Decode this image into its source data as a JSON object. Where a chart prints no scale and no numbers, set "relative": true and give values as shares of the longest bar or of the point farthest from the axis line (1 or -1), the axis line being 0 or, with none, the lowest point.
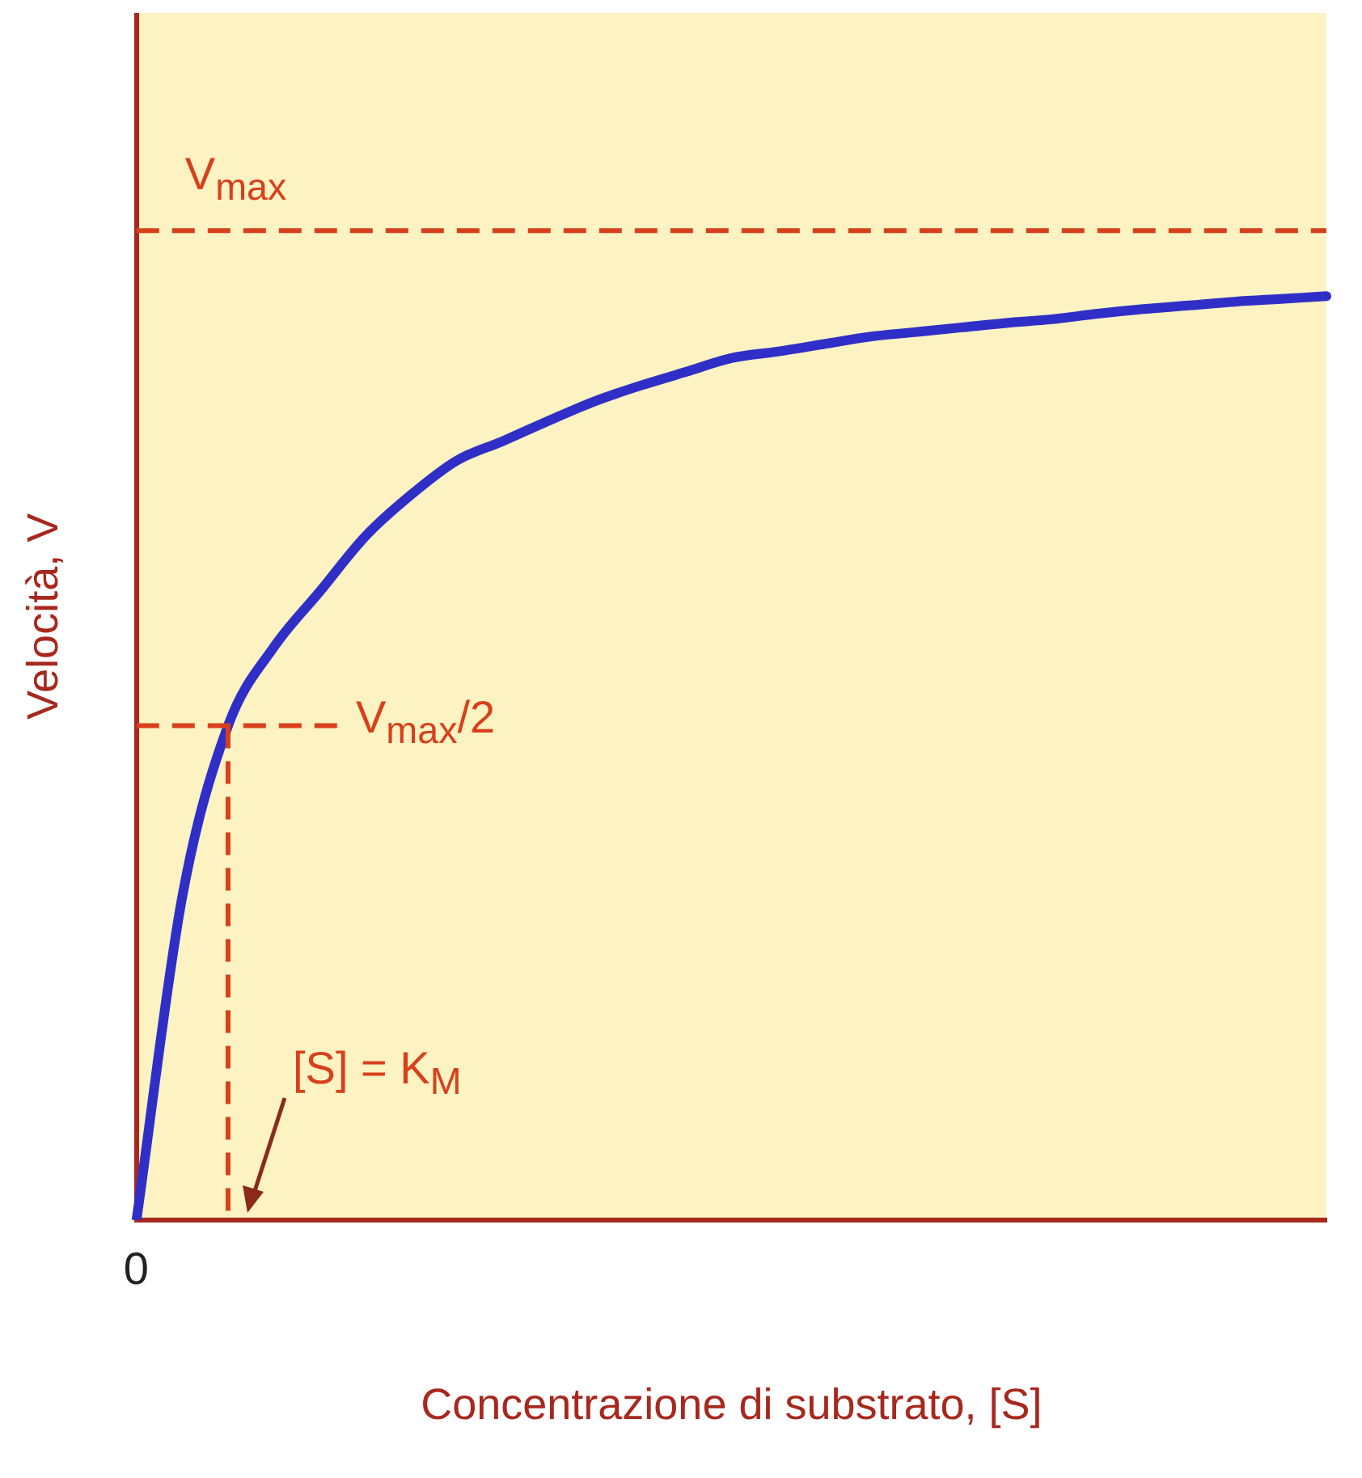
{
  "chart_data": {
    "type": "line",
    "relative": true,
    "xlabel": "Concentrazione di substrato, [S]",
    "ylabel": "Velocità, V",
    "categories": [
      null,
      null,
      null,
      null,
      null,
      null,
      null,
      null,
      null,
      null,
      null,
      null,
      null,
      null,
      null,
      null,
      null,
      null,
      null,
      null,
      null,
      null,
      null,
      null,
      null,
      null,
      null
    ],
    "series": [
      {
        "color": "#2f2fc8",
        "values": [
          0,
          0.35,
          0.535,
          0.62,
          0.68,
          0.74,
          0.785,
          0.822,
          0.843,
          0.865,
          0.886,
          0.903,
          0.918,
          0.933,
          0.94,
          0.948,
          0.956,
          0.961,
          0.966,
          0.971,
          0.975,
          0.981,
          0.986,
          0.99,
          0.994,
          0.997,
          1
        ]
      }
    ],
    "ref_lines": [
      {
        "axis": "y",
        "value": 1.071,
        "label": "V$_{max}$",
        "color": "#d8401c",
        "line_style": "dashed"
      },
      {
        "axis": "y",
        "value": 0.535,
        "label": "V$_{max}$/2",
        "color": "#d8401c",
        "line_style": "dashed"
      }
    ],
    "annotations": [
      "0",
      "[S] = K$_{M}$"
    ],
    "grid": false,
    "legend": false,
    "marker": "none",
    "line_style": "solid"
  }
}
